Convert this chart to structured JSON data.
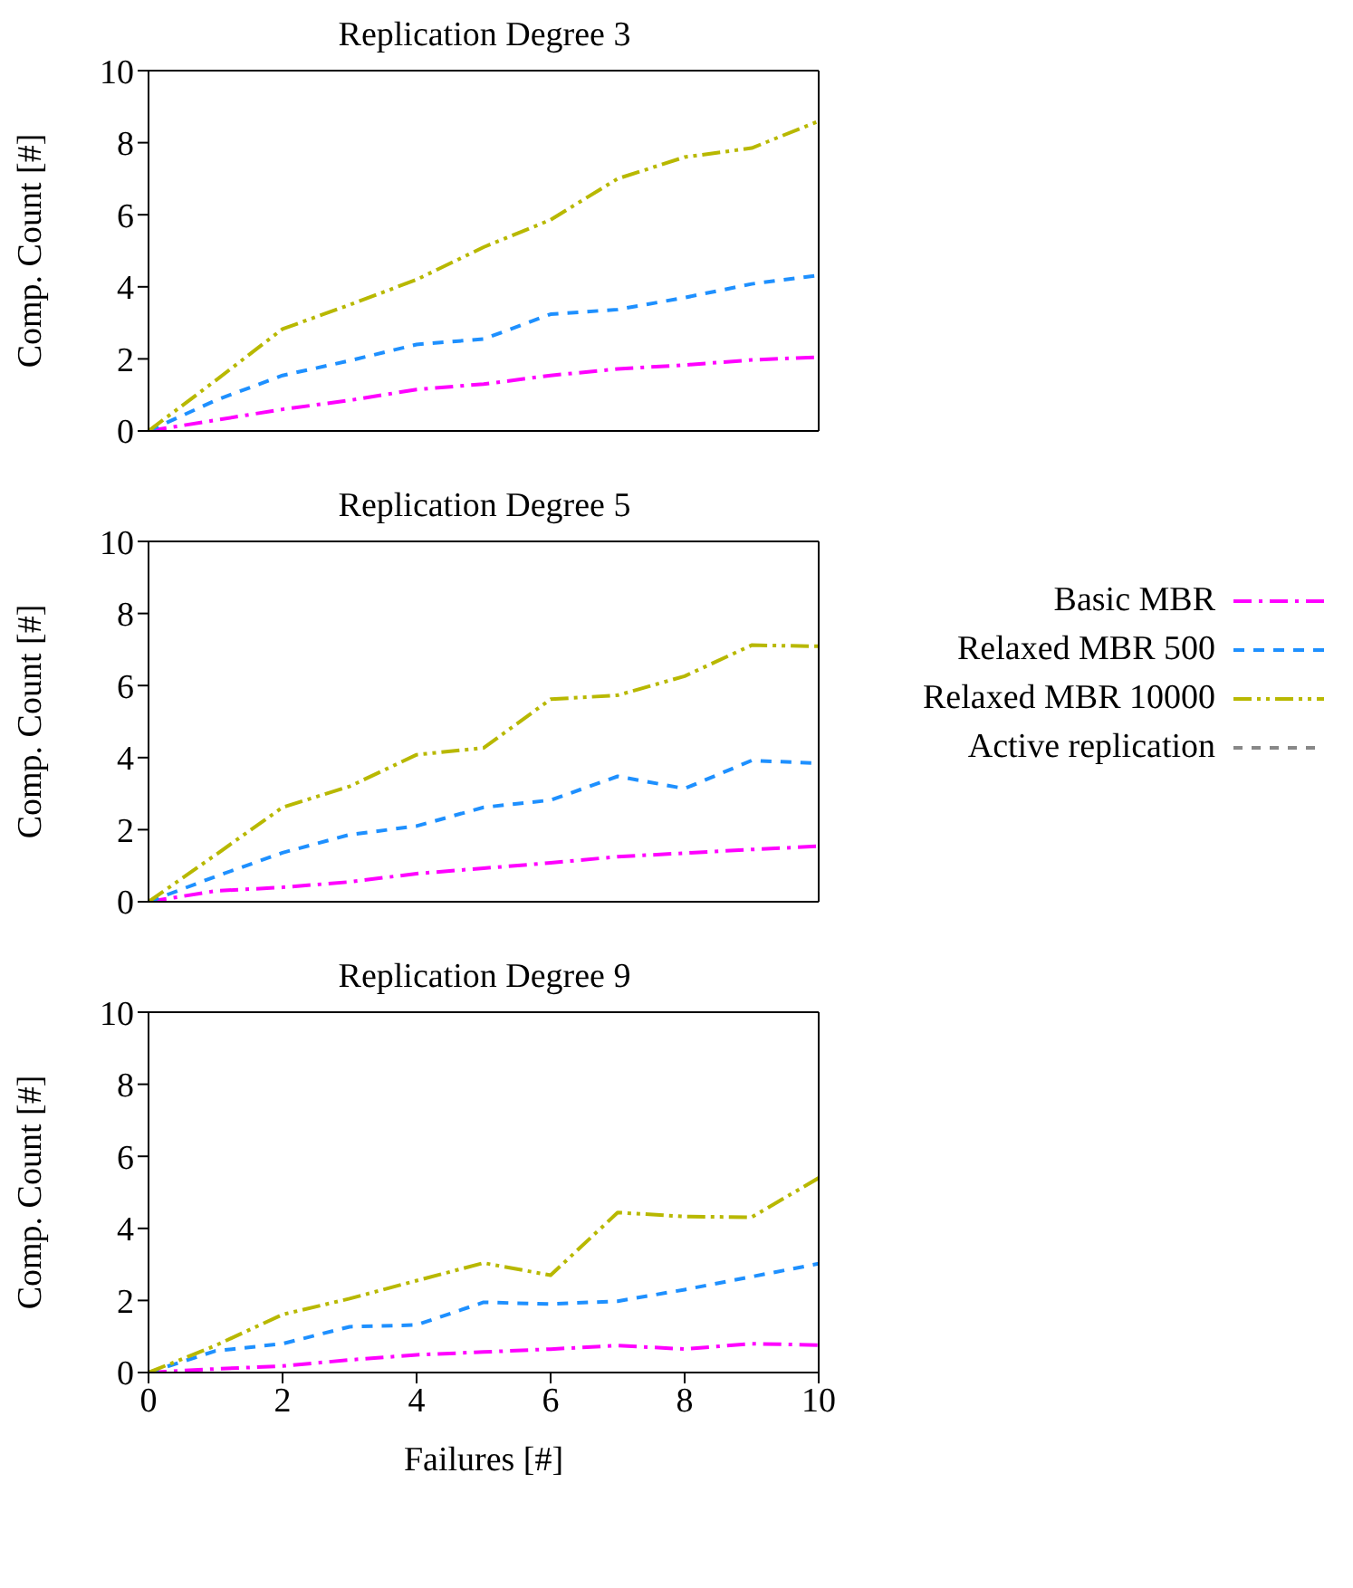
{
  "chart_data": [
    {
      "type": "line",
      "title": "Replication Degree 3",
      "ylabel": "Comp. Count [#]",
      "x": [
        0,
        1,
        2,
        3,
        4,
        5,
        6,
        7,
        8,
        9,
        10
      ],
      "xlim": [
        0,
        10
      ],
      "xticks": [
        0,
        2,
        4,
        6,
        8,
        10
      ],
      "ylim": [
        0,
        10
      ],
      "yticks": [
        0,
        2,
        4,
        6,
        8,
        10
      ],
      "tick_labels": "y",
      "legend": false,
      "marker": "none",
      "line_style": "dashed",
      "series": [
        {
          "color": "#ff00ff",
          "values": [
            0,
            0.3,
            0.6,
            0.85,
            1.15,
            1.3,
            1.54,
            1.72,
            1.83,
            1.97,
            2.05
          ]
        },
        {
          "color": "#1e90ff",
          "values": [
            0,
            0.85,
            1.54,
            1.95,
            2.4,
            2.55,
            3.24,
            3.37,
            3.7,
            4.08,
            4.32
          ]
        },
        {
          "color": "#b8b800",
          "values": [
            0,
            1.4,
            2.83,
            3.5,
            4.2,
            5.1,
            5.86,
            7.0,
            7.6,
            7.85,
            8.6
          ]
        }
      ]
    },
    {
      "type": "line",
      "title": "Replication Degree 5",
      "ylabel": "Comp. Count [#]",
      "x": [
        0,
        1,
        2,
        3,
        4,
        5,
        6,
        7,
        8,
        9,
        10
      ],
      "xlim": [
        0,
        10
      ],
      "xticks": [
        0,
        2,
        4,
        6,
        8,
        10
      ],
      "ylim": [
        0,
        10
      ],
      "yticks": [
        0,
        2,
        4,
        6,
        8,
        10
      ],
      "tick_labels": "y",
      "legend": "right",
      "marker": "none",
      "line_style": "dashed",
      "series": [
        {
          "name": "Basic MBR",
          "color": "#ff00ff",
          "values": [
            0,
            0.3,
            0.4,
            0.55,
            0.78,
            0.93,
            1.08,
            1.25,
            1.35,
            1.45,
            1.54
          ]
        },
        {
          "name": "Relaxed MBR 500",
          "color": "#1e90ff",
          "values": [
            0,
            0.7,
            1.36,
            1.86,
            2.1,
            2.62,
            2.82,
            3.48,
            3.14,
            3.92,
            3.84
          ]
        },
        {
          "name": "Relaxed MBR 10000",
          "color": "#b8b800",
          "values": [
            0,
            1.3,
            2.62,
            3.2,
            4.08,
            4.27,
            5.62,
            5.73,
            6.26,
            7.12,
            7.09
          ]
        },
        {
          "name": "Active replication",
          "color": "#888888",
          "values": [
            null,
            null,
            null,
            null,
            null,
            null,
            null,
            null,
            null,
            null,
            null
          ]
        }
      ]
    },
    {
      "type": "line",
      "title": "Replication Degree 9",
      "xlabel": "Failures [#]",
      "ylabel": "Comp. Count [#]",
      "x": [
        0,
        1,
        2,
        3,
        4,
        5,
        6,
        7,
        8,
        9,
        10
      ],
      "xlim": [
        0,
        10
      ],
      "xticks": [
        0,
        2,
        4,
        6,
        8,
        10
      ],
      "ylim": [
        0,
        10
      ],
      "yticks": [
        0,
        2,
        4,
        6,
        8,
        10
      ],
      "legend": false,
      "marker": "none",
      "line_style": "dashed",
      "series": [
        {
          "color": "#ff00ff",
          "values": [
            0,
            0.1,
            0.18,
            0.35,
            0.49,
            0.57,
            0.65,
            0.75,
            0.65,
            0.8,
            0.76
          ]
        },
        {
          "color": "#1e90ff",
          "values": [
            0,
            0.6,
            0.8,
            1.27,
            1.32,
            1.95,
            1.9,
            1.98,
            2.3,
            2.66,
            3.02
          ]
        },
        {
          "color": "#b8b800",
          "values": [
            0,
            0.75,
            1.61,
            2.05,
            2.55,
            3.04,
            2.7,
            4.44,
            4.33,
            4.31,
            5.4
          ]
        }
      ]
    }
  ]
}
